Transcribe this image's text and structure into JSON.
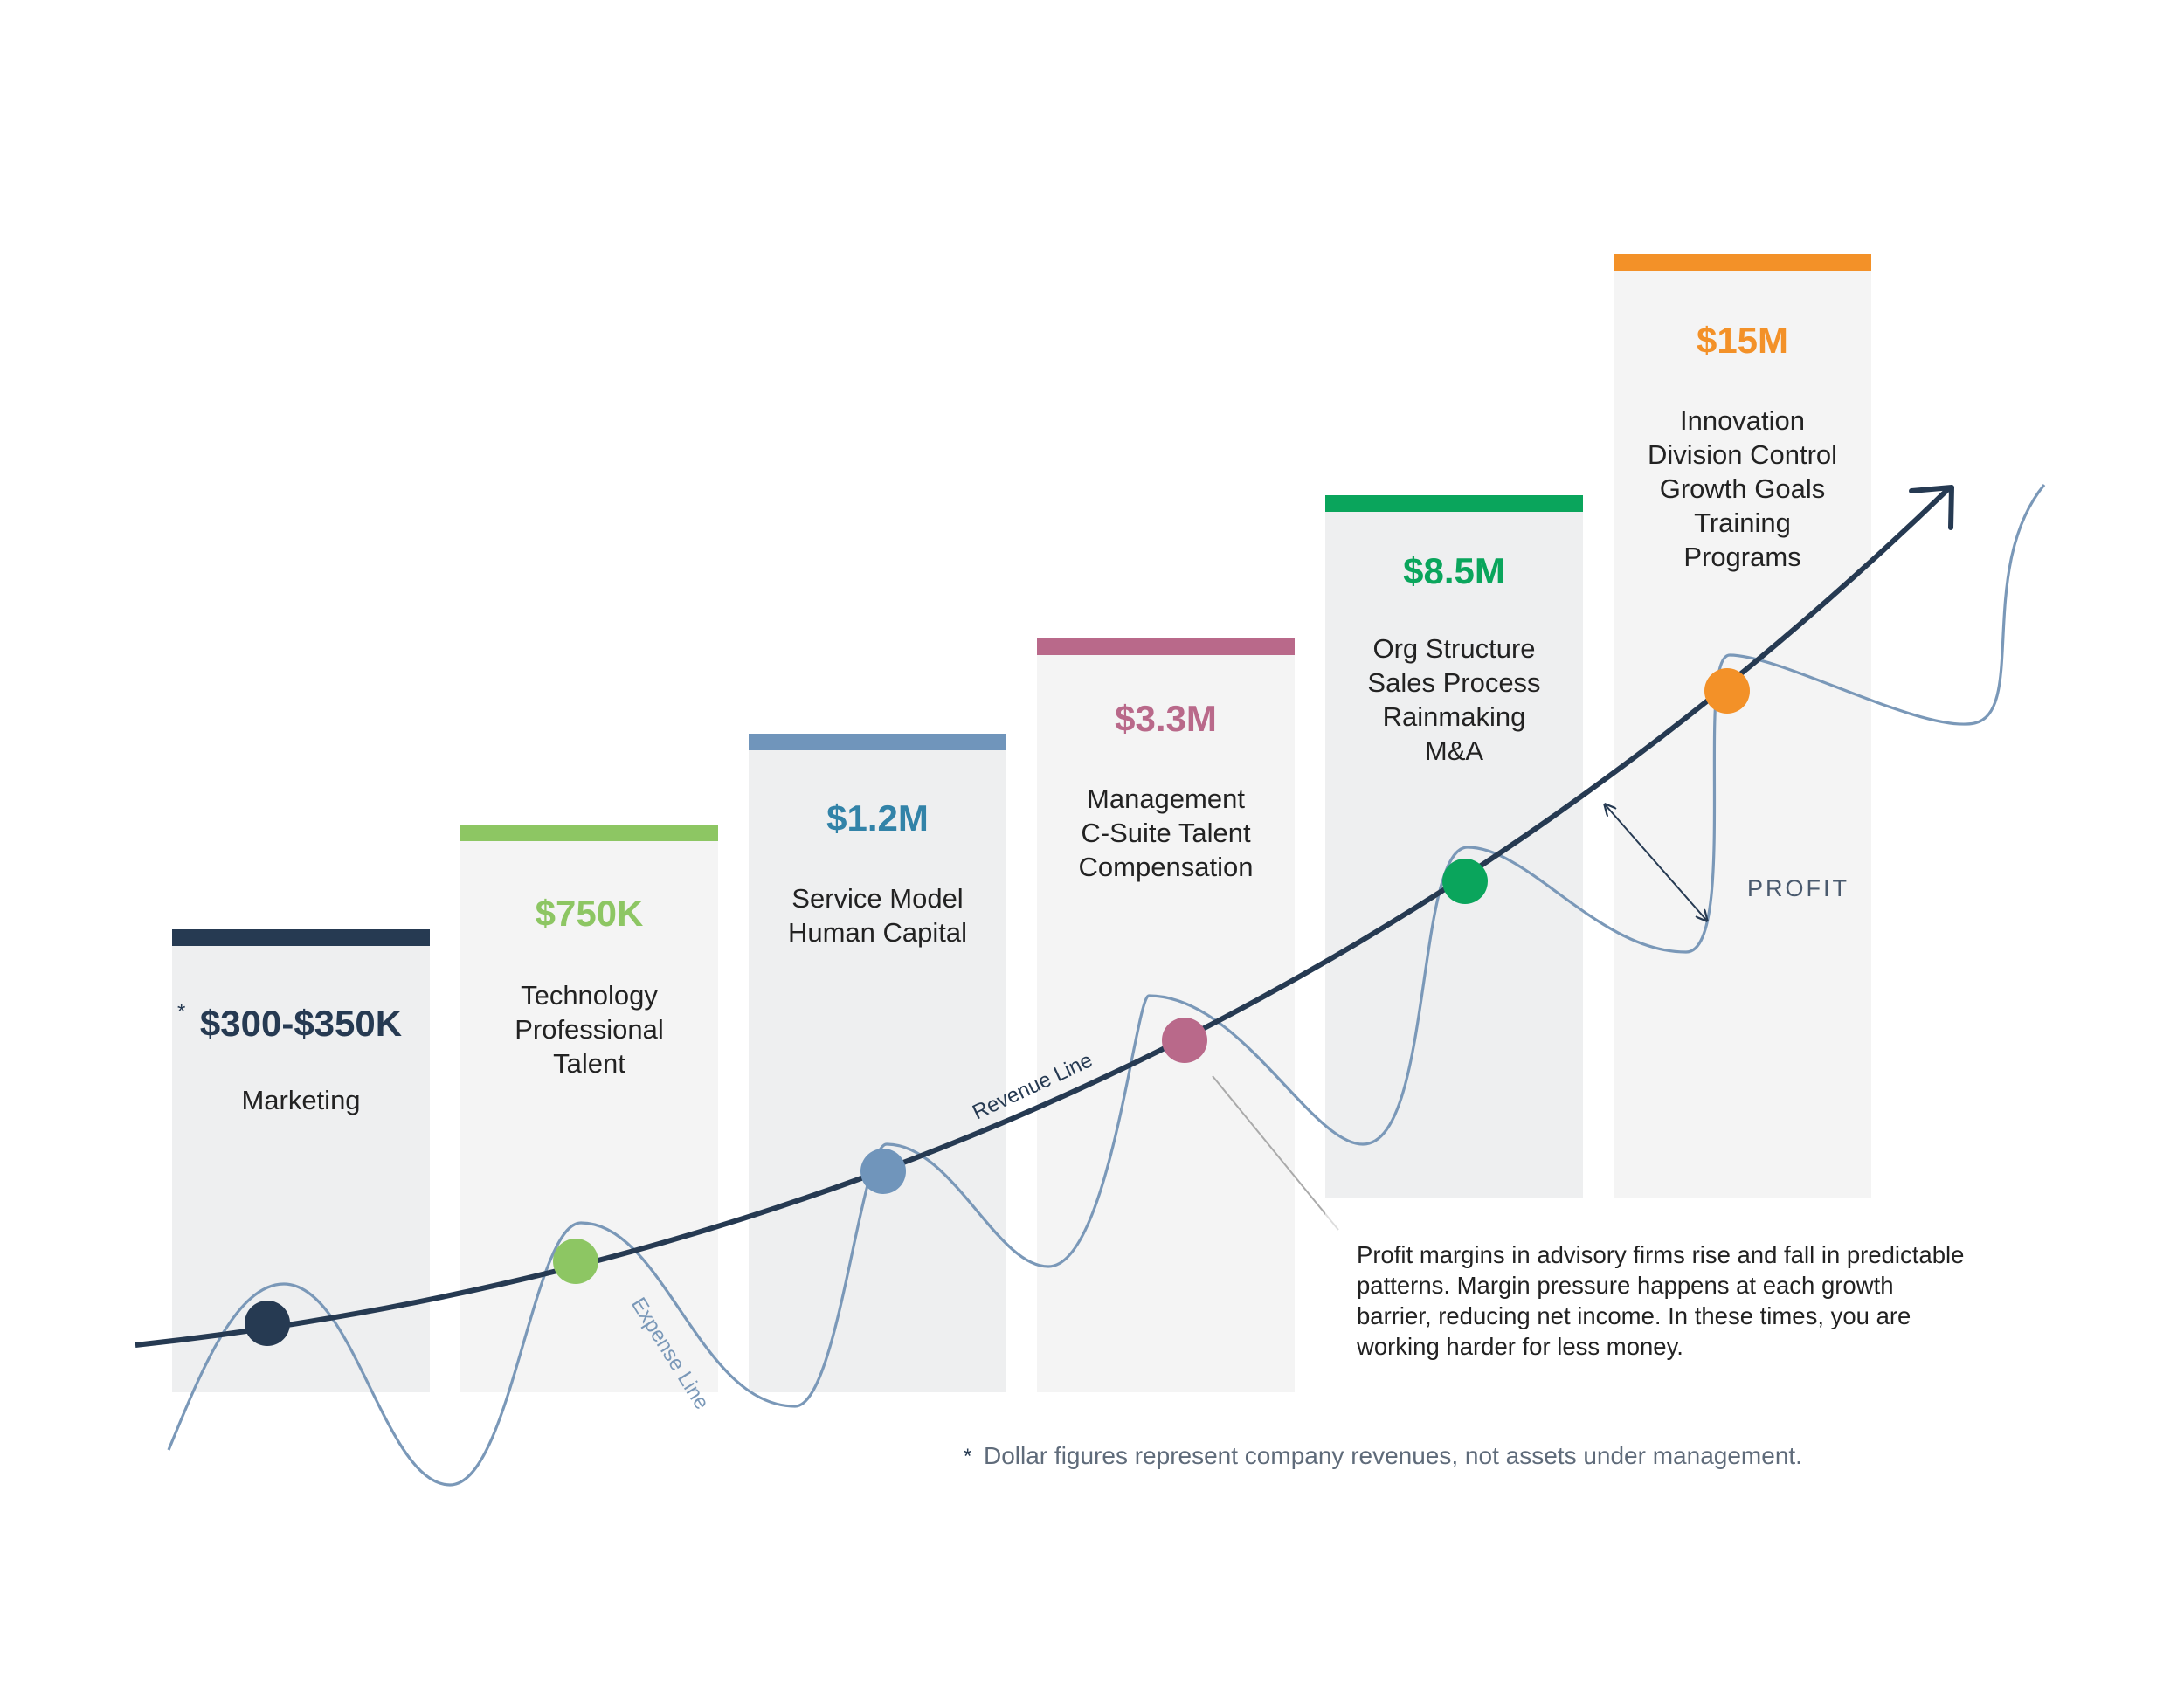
{
  "stages": [
    {
      "amount": "$300-$350K",
      "labels": [
        "Marketing"
      ],
      "color": "#263a52",
      "asterisk": "*"
    },
    {
      "amount": "$750K",
      "labels": [
        "Technology",
        "Professional",
        "Talent"
      ],
      "color": "#8dc663"
    },
    {
      "amount": "$1.2M",
      "labels": [
        "Service Model",
        "Human Capital"
      ],
      "color": "#7095bb",
      "amount_color": "#3283a8"
    },
    {
      "amount": "$3.3M",
      "labels": [
        "Management",
        "C-Suite Talent",
        "Compensation"
      ],
      "color": "#b9698a"
    },
    {
      "amount": "$8.5M",
      "labels": [
        "Org Structure",
        "Sales Process",
        "Rainmaking",
        "M&A"
      ],
      "color": "#0aa55c"
    },
    {
      "amount": "$15M",
      "labels": [
        "Innovation",
        "Division Control",
        "Growth Goals",
        "Training",
        "Programs"
      ],
      "color": "#f39128"
    }
  ],
  "revenue_label": "Revenue Line",
  "expense_label": "Expense Line",
  "profit_label": "PROFIT",
  "note_lines": [
    "Profit margins in advisory firms rise and fall in predictable",
    "patterns. Margin pressure happens at each growth",
    "barrier, reducing net income. In these times, you are",
    "working harder for less money."
  ],
  "footnote": {
    "mark": "*",
    "text": "Dollar figures represent company revenues, not assets under management."
  },
  "colors": {
    "revenue_line": "#263a52",
    "expense_line": "#7a98b8",
    "panel": "#eeeff0",
    "panel_alt": "#f4f4f4"
  }
}
